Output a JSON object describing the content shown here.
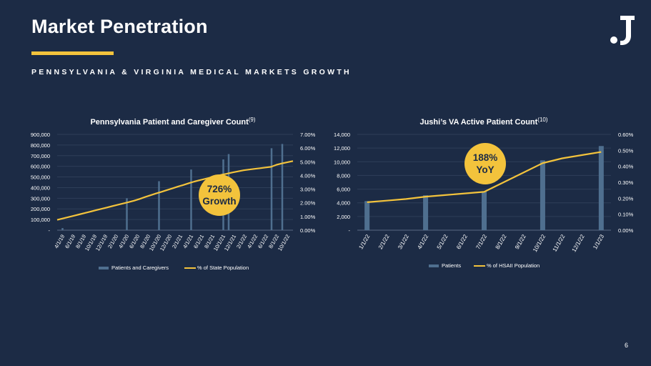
{
  "header": {
    "title": "Market Penetration",
    "subtitle": "PENNSYLVANIA & VIRGINIA MEDICAL MARKETS GROWTH",
    "logo_text": ".J"
  },
  "page_number": "6",
  "colors": {
    "background": "#1c2b45",
    "accent": "#f3c33c",
    "bar": "#4f6f8f",
    "gridline": "#2e3e58",
    "text": "#ffffff"
  },
  "callouts": {
    "pa": {
      "line1": "726%",
      "line2": "Growth"
    },
    "va": {
      "line1": "188%",
      "line2": "YoY"
    }
  },
  "chart_data": [
    {
      "id": "pa",
      "type": "bar+line",
      "title": "Pennsylvania Patient and Caregiver Count",
      "title_sup": "(9)",
      "categories": [
        "4/1/19",
        "6/1/19",
        "8/1/19",
        "10/1/19",
        "12/1/19",
        "2/1/20",
        "4/1/20",
        "6/1/20",
        "8/1/20",
        "10/1/20",
        "12/1/20",
        "2/1/21",
        "4/1/21",
        "6/1/21",
        "8/1/21",
        "10/1/21",
        "12/1/21",
        "2/1/22",
        "4/1/22",
        "6/1/22",
        "8/1/22",
        "10/1/22"
      ],
      "line_x": [
        "4/1/19",
        "5/1/19",
        "6/1/19",
        "7/1/19",
        "8/1/19",
        "9/1/19",
        "10/1/19",
        "11/1/19",
        "12/1/19",
        "1/1/20",
        "2/1/20",
        "3/1/20",
        "4/1/20",
        "5/1/20",
        "6/1/20",
        "7/1/20",
        "8/1/20",
        "9/1/20",
        "10/1/20",
        "11/1/20",
        "12/1/20",
        "1/1/21",
        "2/1/21",
        "3/1/21",
        "4/1/21",
        "5/1/21",
        "6/1/21",
        "7/1/21",
        "8/1/21",
        "9/1/21",
        "10/1/21",
        "11/1/21",
        "12/1/21",
        "1/1/22",
        "2/1/22",
        "3/1/22",
        "4/1/22",
        "5/1/22",
        "6/1/22",
        "7/1/22",
        "8/1/22",
        "9/1/22",
        "10/1/22",
        "11/1/22"
      ],
      "line_values": [
        0.0075,
        0.0085,
        0.0095,
        0.0105,
        0.0115,
        0.0125,
        0.0135,
        0.0145,
        0.0155,
        0.0165,
        0.0175,
        0.0185,
        0.0195,
        0.0205,
        0.0215,
        0.0228,
        0.0242,
        0.0255,
        0.0268,
        0.028,
        0.0293,
        0.0305,
        0.0318,
        0.033,
        0.0343,
        0.0355,
        0.0365,
        0.0375,
        0.0385,
        0.0395,
        0.0405,
        0.0413,
        0.0422,
        0.043,
        0.0438,
        0.0443,
        0.0448,
        0.0453,
        0.0458,
        0.0463,
        0.0478,
        0.0488,
        0.0497,
        0.0505
      ],
      "bar_series": {
        "name": "Patients and Caregivers",
        "values": [
          20000,
          null,
          null,
          null,
          null,
          null,
          300000,
          null,
          null,
          460000,
          null,
          null,
          570000,
          null,
          null,
          665000,
          null,
          null,
          null,
          null,
          null,
          null
        ]
      },
      "bar_markers": [
        {
          "after_category": "10/1/21",
          "value": 715000
        },
        {
          "after_category": "6/1/22",
          "value": 770000
        },
        {
          "after_category": "8/1/22",
          "value": 810000
        }
      ],
      "line_series_name": "% of State Population",
      "y_left": {
        "min": 0,
        "max": 900000,
        "ticks": [
          "-",
          "100,000",
          "200,000",
          "300,000",
          "400,000",
          "500,000",
          "600,000",
          "700,000",
          "800,000",
          "900,000"
        ]
      },
      "y_right": {
        "min": 0,
        "max": 0.07,
        "ticks": [
          "0.00%",
          "1.00%",
          "2.00%",
          "3.00%",
          "4.00%",
          "5.00%",
          "6.00%",
          "7.00%"
        ]
      },
      "legend": [
        "Patients and Caregivers",
        "% of State Population"
      ]
    },
    {
      "id": "va",
      "type": "bar+line",
      "title": "Jushi’s VA Active Patient Count",
      "title_sup": "(10)",
      "categories": [
        "1/1/22",
        "2/1/22",
        "3/1/22",
        "4/1/22",
        "5/1/22",
        "6/1/22",
        "7/1/22",
        "8/1/22",
        "9/1/22",
        "10/1/22",
        "11/1/22",
        "12/1/22",
        "1/1/23"
      ],
      "bar_series": {
        "name": "Patients",
        "values": [
          4250,
          null,
          null,
          5100,
          null,
          null,
          5650,
          null,
          null,
          10200,
          null,
          null,
          12300
        ]
      },
      "line_series": {
        "name": "% of HSAII Population",
        "values": [
          0.00175,
          0.00185,
          0.00195,
          0.0021,
          0.0022,
          0.0023,
          0.0024,
          0.003,
          0.0036,
          0.0042,
          0.0045,
          0.0047,
          0.0049
        ]
      },
      "y_left": {
        "min": 0,
        "max": 14000,
        "ticks": [
          "-",
          "2,000",
          "4,000",
          "6,000",
          "8,000",
          "10,000",
          "12,000",
          "14,000"
        ]
      },
      "y_right": {
        "min": 0,
        "max": 0.006,
        "ticks": [
          "0.00%",
          "0.10%",
          "0.20%",
          "0.30%",
          "0.40%",
          "0.50%",
          "0.60%"
        ]
      },
      "legend": [
        "Patients",
        "% of HSAII Population"
      ]
    }
  ]
}
